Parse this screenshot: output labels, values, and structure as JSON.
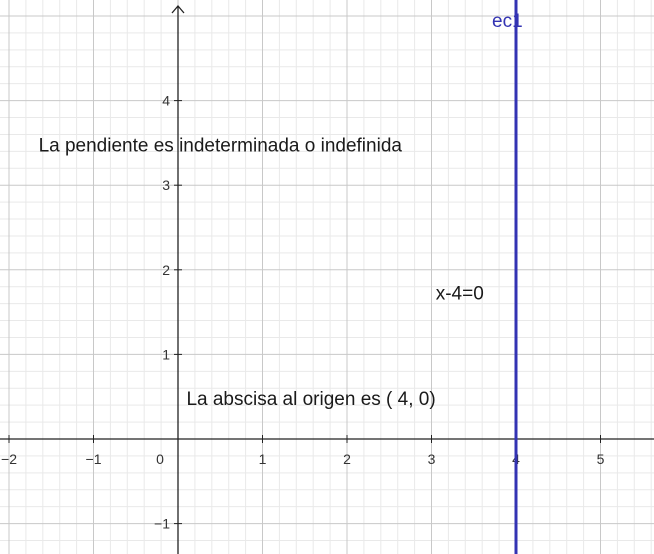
{
  "chart_data": {
    "type": "line",
    "xlim": [
      -2.1,
      5.5
    ],
    "ylim": [
      -1.35,
      5.1
    ],
    "grid": true,
    "minor_grid_per_unit": 5,
    "x_ticks": [
      "−2",
      "−1",
      "0",
      "1",
      "2",
      "3",
      "4",
      "5"
    ],
    "x_tick_values": [
      -2,
      -1,
      0,
      1,
      2,
      3,
      4,
      5
    ],
    "y_ticks": [
      "4",
      "3",
      "2",
      "1",
      "−1"
    ],
    "y_tick_values": [
      4,
      3,
      2,
      1,
      -1
    ],
    "series": [
      {
        "name": "ec1",
        "kind": "vertical-line",
        "x": 4,
        "equation": "x-4=0",
        "color": "#3333b3"
      }
    ],
    "annotations": [
      {
        "text": "La pendiente es indeterminada o indefinida",
        "x": -1.65,
        "y": 3.4
      },
      {
        "text": "x-4=0",
        "x": 3.05,
        "y": 1.65
      },
      {
        "text": "La abscisa al origen es ( 4, 0)",
        "x": 0.1,
        "y": 0.4
      }
    ]
  }
}
